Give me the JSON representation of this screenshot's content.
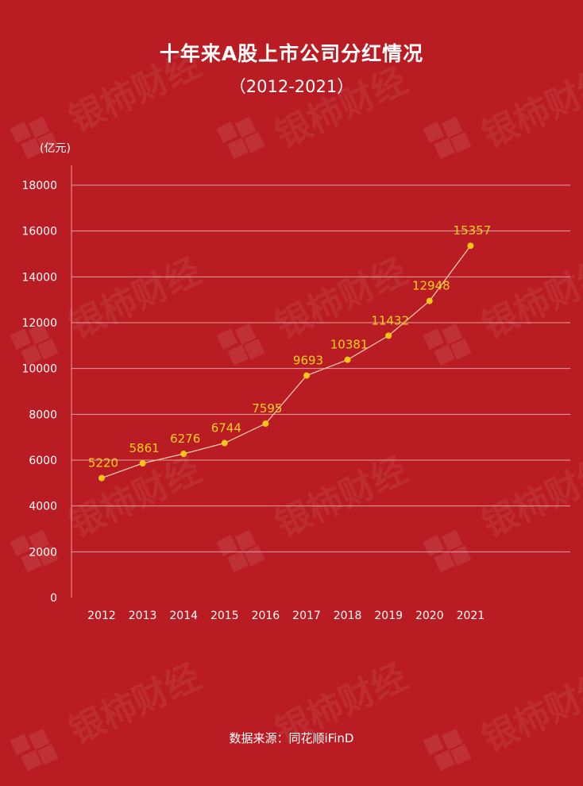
{
  "header": {
    "title": "十年来A股上市公司分红情况",
    "subtitle": "（2012-2021）",
    "unit": "(亿元)"
  },
  "footer": {
    "source": "数据来源：同花顺iFinD"
  },
  "watermark": {
    "text": "银柿财经"
  },
  "colors": {
    "background": "#b91c22",
    "line": "#f4c7b0",
    "point": "#f5c518",
    "data_label": "#f5d021",
    "grid": "#e8a0a0",
    "text": "#ffffff"
  },
  "chart_data": {
    "type": "line",
    "title": "十年来A股上市公司分红情况",
    "subtitle": "（2012-2021）",
    "ylabel": "(亿元)",
    "xlabel": "",
    "categories": [
      "2012",
      "2013",
      "2014",
      "2015",
      "2016",
      "2017",
      "2018",
      "2019",
      "2020",
      "2021"
    ],
    "values": [
      5220,
      5861,
      6276,
      6744,
      7595,
      9693,
      10381,
      11432,
      12948,
      15357
    ],
    "yticks": [
      0,
      2000,
      4000,
      6000,
      8000,
      10000,
      12000,
      14000,
      16000,
      18000
    ],
    "ylim": [
      0,
      18000
    ],
    "grid": true,
    "legend": "none"
  }
}
